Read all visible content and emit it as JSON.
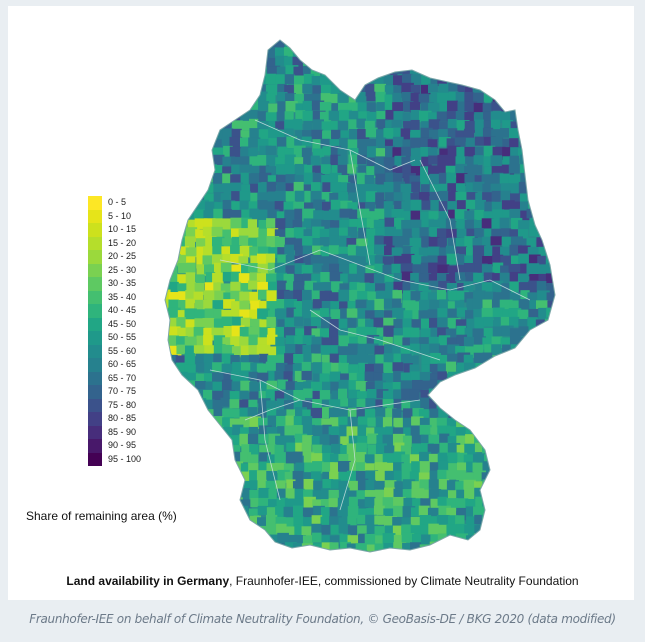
{
  "legend": {
    "title": "Share of remaining area (%)",
    "items": [
      {
        "label": "0 - 5",
        "color": "#fde725"
      },
      {
        "label": "5 - 10",
        "color": "#e6e419"
      },
      {
        "label": "10 - 15",
        "color": "#cde11d"
      },
      {
        "label": "15 - 20",
        "color": "#b5de2b"
      },
      {
        "label": "20 - 25",
        "color": "#9bd93c"
      },
      {
        "label": "25 - 30",
        "color": "#7ad151"
      },
      {
        "label": "30 - 35",
        "color": "#5ec962"
      },
      {
        "label": "35 - 40",
        "color": "#44bf70"
      },
      {
        "label": "40 - 45",
        "color": "#2fb47c"
      },
      {
        "label": "45 - 50",
        "color": "#21a685"
      },
      {
        "label": "50 - 55",
        "color": "#1f998a"
      },
      {
        "label": "55 - 60",
        "color": "#228c8d"
      },
      {
        "label": "60 - 65",
        "color": "#26818e"
      },
      {
        "label": "65 - 70",
        "color": "#2c728e"
      },
      {
        "label": "70 - 75",
        "color": "#33638d"
      },
      {
        "label": "75 - 80",
        "color": "#3b528b"
      },
      {
        "label": "80 - 85",
        "color": "#424086"
      },
      {
        "label": "85 - 90",
        "color": "#472d7b"
      },
      {
        "label": "90 - 95",
        "color": "#48186a"
      },
      {
        "label": "95 - 100",
        "color": "#440154"
      }
    ]
  },
  "caption": {
    "bold": "Land availability in Germany",
    "rest": ", Fraunhofer-IEE, commissioned by Climate Neutrality Foundation"
  },
  "credit": "Fraunhofer-IEE on behalf of Climate Neutrality Foundation, © GeoBasis-DE / BKG 2020 (data modified)"
}
